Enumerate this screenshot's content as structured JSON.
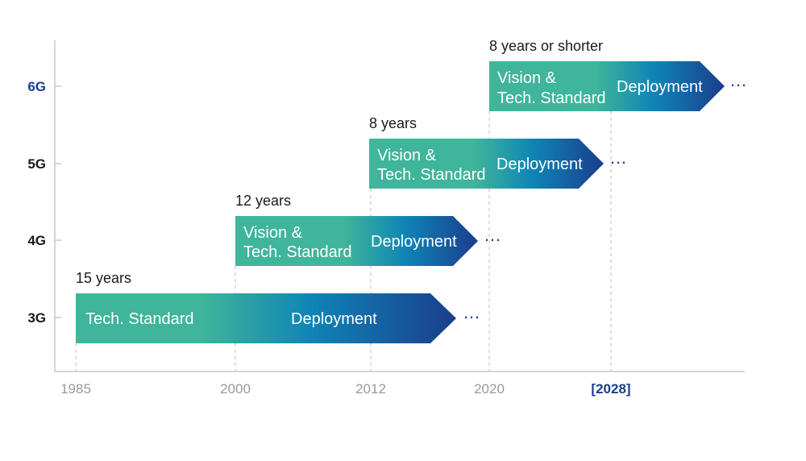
{
  "chart_data": {
    "type": "timeline",
    "generations": [
      {
        "label": "3G",
        "duration": "15 years",
        "phases": [
          "Tech. Standard",
          "Deployment"
        ],
        "highlight": false
      },
      {
        "label": "4G",
        "duration": "12 years",
        "phases": [
          "Vision &",
          "Tech. Standard",
          "Deployment"
        ],
        "highlight": false
      },
      {
        "label": "5G",
        "duration": "8 years",
        "phases": [
          "Vision &",
          "Tech. Standard",
          "Deployment"
        ],
        "highlight": false
      },
      {
        "label": "6G",
        "duration": "8 years or shorter",
        "phases": [
          "Vision &",
          "Tech. Standard",
          "Deployment"
        ],
        "highlight": true
      }
    ],
    "x_ticks": [
      {
        "label": "1985",
        "highlight": false
      },
      {
        "label": "2000",
        "highlight": false
      },
      {
        "label": "2012",
        "highlight": false
      },
      {
        "label": "2020",
        "highlight": false
      },
      {
        "label": "[2028]",
        "highlight": true
      }
    ],
    "continuation_marker": "…",
    "colors": {
      "gradient_start": "#3fb59b",
      "gradient_mid": "#0f84b6",
      "gradient_end": "#1b3d8c",
      "accent": "#1b3d8c",
      "axis": "#c8c8c8",
      "tick_text": "#9a9a9a"
    }
  }
}
